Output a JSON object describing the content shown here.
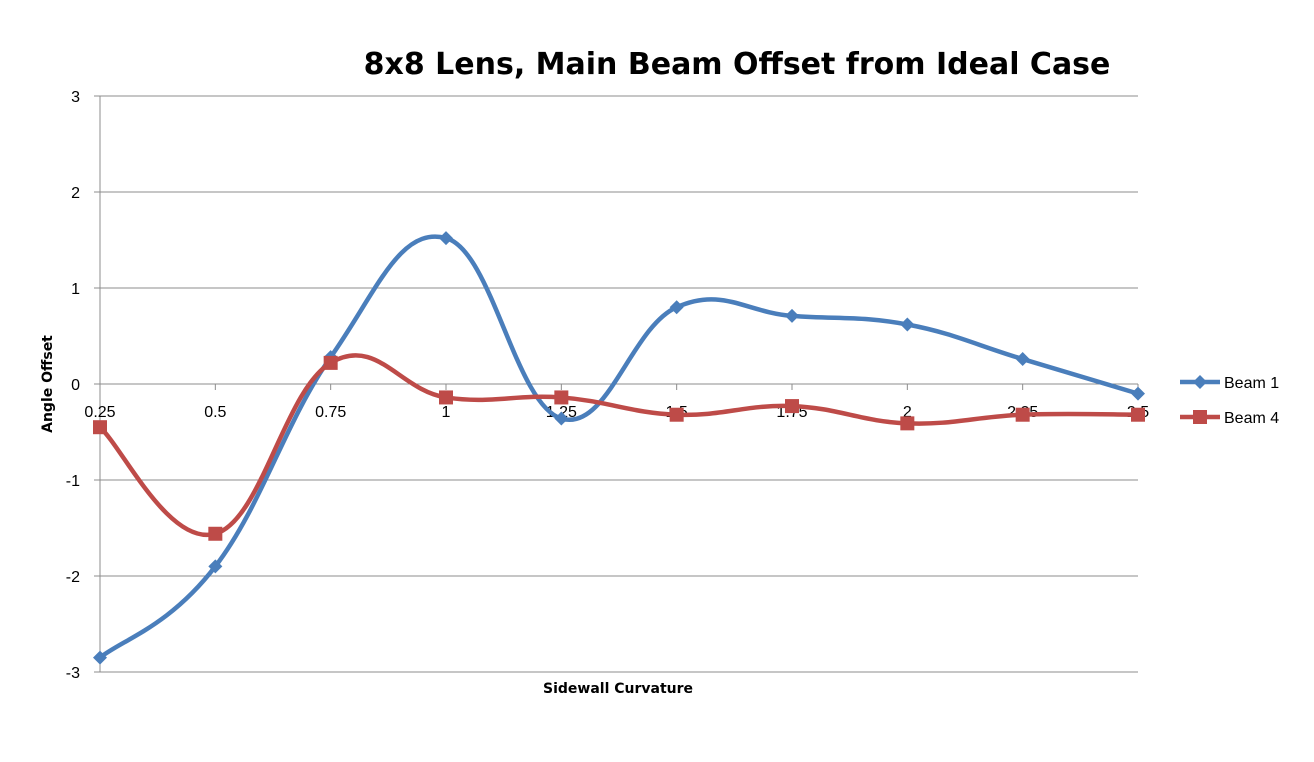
{
  "chart_data": {
    "type": "line",
    "title": "8x8 Lens, Main Beam Offset from Ideal Case",
    "xlabel": "Sidewall Curvature",
    "ylabel": "Angle Offset",
    "categories": [
      "0.25",
      "0.5",
      "0.75",
      "1",
      "1.25",
      "1.5",
      "1.75",
      "2",
      "2.25",
      "2.5"
    ],
    "yticks": [
      "3",
      "2",
      "1",
      "0",
      "-1",
      "-2",
      "-3"
    ],
    "ylim": [
      -3,
      3
    ],
    "grid": true,
    "legend_position": "right",
    "smooth": true,
    "series": [
      {
        "name": "Beam 1",
        "marker": "diamond",
        "color": "#4a7ebb",
        "values": [
          -2.85,
          -1.9,
          0.28,
          1.52,
          -0.36,
          0.8,
          0.71,
          0.62,
          0.26,
          -0.1
        ]
      },
      {
        "name": "Beam 4",
        "marker": "square",
        "color": "#be4b48",
        "values": [
          -0.45,
          -1.56,
          0.22,
          -0.14,
          -0.14,
          -0.32,
          -0.23,
          -0.41,
          -0.32,
          -0.32
        ]
      }
    ]
  }
}
